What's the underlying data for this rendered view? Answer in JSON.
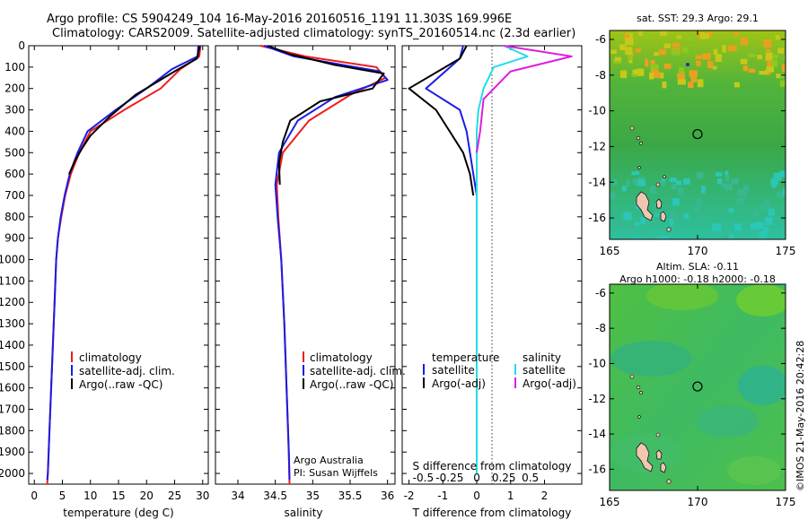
{
  "header": {
    "line1": "Argo profile: CS 5904249_104 16-May-2016 20160516_1191 11.303S 169.996E",
    "line2": "Climatology: CARS2009. Satellite-adjusted climatology: synTS_20160514.nc (2.3d earlier)"
  },
  "colors": {
    "climatology": "#ee1c1c",
    "satellite": "#1c1ce6",
    "argo": "#000000",
    "sal_satellite": "#22dde6",
    "sal_argo": "#e01cdf"
  },
  "chart_data": [
    {
      "type": "line",
      "xlabel": "temperature (deg C)",
      "xlim": [
        -1,
        31
      ],
      "ylim": [
        0,
        2050
      ],
      "yticks": [
        0,
        100,
        200,
        300,
        400,
        500,
        600,
        700,
        800,
        900,
        1000,
        1100,
        1200,
        1300,
        1400,
        1500,
        1600,
        1700,
        1800,
        1900,
        2000
      ],
      "xticks": [
        0,
        5,
        10,
        15,
        20,
        25,
        30
      ],
      "legend": [
        "climatology",
        "satellite-adj. clim.",
        "Argo(..raw -QC)"
      ],
      "series": [
        {
          "name": "climatology",
          "color_key": "climatology",
          "points": [
            [
              29.6,
              0
            ],
            [
              29.4,
              50
            ],
            [
              26,
              110
            ],
            [
              22.5,
              200
            ],
            [
              16,
              300
            ],
            [
              10,
              400
            ],
            [
              8,
              500
            ],
            [
              6.5,
              600
            ],
            [
              5.5,
              700
            ],
            [
              4.8,
              800
            ],
            [
              4.2,
              900
            ],
            [
              3.9,
              1000
            ],
            [
              3.6,
              1200
            ],
            [
              3.3,
              1400
            ],
            [
              3,
              1600
            ],
            [
              2.7,
              1800
            ],
            [
              2.4,
              2000
            ],
            [
              2.3,
              2050
            ]
          ]
        },
        {
          "name": "satellite-adj. clim.",
          "color_key": "satellite",
          "points": [
            [
              29.2,
              0
            ],
            [
              29.1,
              50
            ],
            [
              24.5,
              110
            ],
            [
              20,
              200
            ],
            [
              14.5,
              300
            ],
            [
              9.5,
              400
            ],
            [
              7.7,
              500
            ],
            [
              6.3,
              600
            ],
            [
              5.4,
              700
            ],
            [
              4.7,
              800
            ],
            [
              4.2,
              900
            ],
            [
              3.9,
              1000
            ],
            [
              3.6,
              1200
            ],
            [
              3.3,
              1400
            ],
            [
              3,
              1600
            ],
            [
              2.7,
              1800
            ],
            [
              2.4,
              2000
            ],
            [
              2.3,
              2030
            ]
          ]
        },
        {
          "name": "Argo(..raw -QC)",
          "color_key": "argo",
          "points": [
            [
              29.5,
              0
            ],
            [
              29,
              60
            ],
            [
              25,
              120
            ],
            [
              18,
              230
            ],
            [
              13.5,
              330
            ],
            [
              10,
              420
            ],
            [
              8.5,
              480
            ],
            [
              7.2,
              540
            ],
            [
              6.2,
              600
            ]
          ]
        }
      ]
    },
    {
      "type": "line",
      "xlabel": "salinity",
      "xlim": [
        33.7,
        36.1
      ],
      "xticks": [
        34,
        34.5,
        35,
        35.5,
        36
      ],
      "legend": [
        "climatology",
        "satellite-adj. clim.",
        "Argo(..raw -QC)"
      ],
      "annotation": [
        "Argo Australia",
        "PI: Susan Wijffels"
      ],
      "series": [
        {
          "name": "climatology",
          "color_key": "climatology",
          "points": [
            [
              34.3,
              0
            ],
            [
              34.9,
              50
            ],
            [
              35.85,
              100
            ],
            [
              35.97,
              150
            ],
            [
              35.5,
              230
            ],
            [
              34.95,
              350
            ],
            [
              34.6,
              500
            ],
            [
              34.52,
              650
            ],
            [
              34.54,
              800
            ],
            [
              34.58,
              1000
            ],
            [
              34.62,
              1300
            ],
            [
              34.65,
              1600
            ],
            [
              34.68,
              1900
            ],
            [
              34.69,
              2050
            ]
          ]
        },
        {
          "name": "satellite-adj. clim.",
          "color_key": "satellite",
          "points": [
            [
              34.35,
              0
            ],
            [
              34.75,
              50
            ],
            [
              35.9,
              120
            ],
            [
              36,
              160
            ],
            [
              35.3,
              240
            ],
            [
              34.8,
              350
            ],
            [
              34.55,
              500
            ],
            [
              34.5,
              650
            ],
            [
              34.53,
              800
            ],
            [
              34.58,
              1000
            ],
            [
              34.62,
              1300
            ],
            [
              34.65,
              1600
            ],
            [
              34.68,
              1900
            ],
            [
              34.69,
              2030
            ]
          ]
        },
        {
          "name": "Argo(..raw -QC)",
          "color_key": "argo",
          "points": [
            [
              34.4,
              0
            ],
            [
              34.7,
              40
            ],
            [
              35.3,
              90
            ],
            [
              35.95,
              130
            ],
            [
              35.8,
              200
            ],
            [
              35.1,
              260
            ],
            [
              34.7,
              350
            ],
            [
              34.6,
              450
            ],
            [
              34.55,
              550
            ],
            [
              34.56,
              650
            ]
          ]
        }
      ]
    },
    {
      "type": "line",
      "xlabel": "T difference from climatology",
      "xlabel_top": "S difference from climatology",
      "xlim": [
        -2.2,
        3.1
      ],
      "xticks": [
        -2,
        -1,
        0,
        1,
        2
      ],
      "xticks_top": [
        {
          "label": "-0.5",
          "t": -1.58
        },
        {
          "label": "-0.25",
          "t": -0.8
        },
        {
          "label": "0",
          "t": 0
        },
        {
          "label": "0.25",
          "t": 0.8
        },
        {
          "label": "0.5",
          "t": 1.58
        }
      ],
      "legend_temperature": [
        "temperature",
        "satellite",
        "Argo(-adj)"
      ],
      "legend_salinity": [
        "salinity",
        "satellite",
        "Argo(-adj)"
      ],
      "series": [
        {
          "name": "satellite",
          "color_key": "satellite",
          "points": [
            [
              -0.4,
              0
            ],
            [
              -0.5,
              60
            ],
            [
              -1.5,
              200
            ],
            [
              -0.5,
              300
            ],
            [
              -0.3,
              400
            ],
            [
              -0.2,
              500
            ],
            [
              -0.1,
              600
            ],
            [
              0,
              700
            ],
            [
              0,
              900
            ],
            [
              0,
              2000
            ]
          ]
        },
        {
          "name": "Argo(-adj)",
          "color_key": "argo",
          "points": [
            [
              -0.3,
              0
            ],
            [
              -0.5,
              60
            ],
            [
              -2.0,
              200
            ],
            [
              -1.2,
              300
            ],
            [
              -0.8,
              400
            ],
            [
              -0.4,
              500
            ],
            [
              -0.2,
              600
            ],
            [
              -0.1,
              700
            ]
          ]
        },
        {
          "name": "satellite",
          "color_key": "sal_satellite",
          "points": [
            [
              0.8,
              0
            ],
            [
              1.5,
              50
            ],
            [
              0.5,
              100
            ],
            [
              0.2,
              200
            ],
            [
              0.05,
              300
            ],
            [
              0,
              400
            ],
            [
              0,
              2000
            ]
          ]
        },
        {
          "name": "Argo(-adj)",
          "color_key": "sal_argo",
          "points": [
            [
              0.8,
              0
            ],
            [
              2.8,
              50
            ],
            [
              1.0,
              120
            ],
            [
              0.2,
              250
            ],
            [
              0.1,
              400
            ],
            [
              0,
              500
            ]
          ]
        }
      ]
    },
    {
      "type": "heatmap",
      "title": "sat. SST: 29.3 Argo: 29.1",
      "xlim": [
        165,
        175
      ],
      "ylim": [
        -17.2,
        -5.5
      ],
      "xticks": [
        165,
        170,
        175
      ],
      "yticks": [
        -6,
        -8,
        -10,
        -12,
        -14,
        -16
      ],
      "marker": [
        169.996,
        -11.303
      ]
    },
    {
      "type": "heatmap",
      "title_lines": [
        "Altim. SLA: -0.11",
        "Argo h1000: -0.18 h2000: -0.18"
      ],
      "xlim": [
        165,
        175
      ],
      "ylim": [
        -17.2,
        -5.5
      ],
      "xticks": [
        165,
        170,
        175
      ],
      "yticks": [
        -6,
        -8,
        -10,
        -12,
        -14,
        -16
      ],
      "marker": [
        169.996,
        -11.303
      ]
    }
  ],
  "credit": "©IMOS 21-May-2016 20:42:28"
}
